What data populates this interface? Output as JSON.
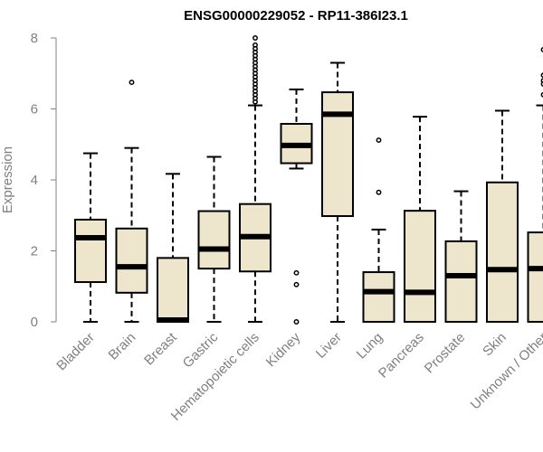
{
  "chart_data": {
    "type": "boxplot",
    "title": "ENSG00000229052 - RP11-386I23.1",
    "xlabel": "",
    "ylabel": "Expression",
    "ylim": [
      0,
      8
    ],
    "yticks": [
      0,
      2,
      4,
      6,
      8
    ],
    "box_fill": "#ede6cc",
    "categories": [
      "Bladder",
      "Brain",
      "Breast",
      "Gastric",
      "Hematopoietic cells",
      "Kidney",
      "Liver",
      "Lung",
      "Pancreas",
      "Prostate",
      "Skin",
      "Unknown / Other"
    ],
    "boxes": [
      {
        "name": "Bladder",
        "whisker_low": 0,
        "q1": 1.12,
        "median": 2.37,
        "q3": 2.88,
        "whisker_high": 4.75,
        "outliers": []
      },
      {
        "name": "Brain",
        "whisker_low": 0,
        "q1": 0.82,
        "median": 1.55,
        "q3": 2.63,
        "whisker_high": 4.9,
        "outliers": [
          6.75
        ]
      },
      {
        "name": "Breast",
        "whisker_low": 0,
        "q1": 0,
        "median": 0.05,
        "q3": 1.8,
        "whisker_high": 4.17,
        "outliers": []
      },
      {
        "name": "Gastric",
        "whisker_low": 0,
        "q1": 1.5,
        "median": 2.05,
        "q3": 3.12,
        "whisker_high": 4.65,
        "outliers": []
      },
      {
        "name": "Hematopoietic cells",
        "whisker_low": 0,
        "q1": 1.42,
        "median": 2.4,
        "q3": 3.32,
        "whisker_high": 6.1,
        "outliers": [
          6.2,
          6.3,
          6.4,
          6.5,
          6.6,
          6.7,
          6.8,
          6.9,
          7.0,
          7.1,
          7.2,
          7.3,
          7.4,
          7.5,
          7.6,
          7.7,
          7.8,
          8.0
        ]
      },
      {
        "name": "Kidney",
        "whisker_low": 4.32,
        "q1": 4.47,
        "median": 4.97,
        "q3": 5.58,
        "whisker_high": 6.55,
        "outliers": [
          0,
          1.05,
          1.38
        ]
      },
      {
        "name": "Liver",
        "whisker_low": 0,
        "q1": 2.98,
        "median": 5.85,
        "q3": 6.47,
        "whisker_high": 7.3,
        "outliers": []
      },
      {
        "name": "Lung",
        "whisker_low": 0,
        "q1": 0,
        "median": 0.85,
        "q3": 1.4,
        "whisker_high": 2.6,
        "outliers": [
          3.65,
          5.12
        ]
      },
      {
        "name": "Pancreas",
        "whisker_low": 0,
        "q1": 0,
        "median": 0.83,
        "q3": 3.13,
        "whisker_high": 5.78,
        "outliers": []
      },
      {
        "name": "Prostate",
        "whisker_low": 0,
        "q1": 0,
        "median": 1.3,
        "q3": 2.27,
        "whisker_high": 3.68,
        "outliers": []
      },
      {
        "name": "Skin",
        "whisker_low": 0,
        "q1": 0,
        "median": 1.47,
        "q3": 3.93,
        "whisker_high": 5.95,
        "outliers": []
      },
      {
        "name": "Unknown / Other",
        "whisker_low": 0,
        "q1": 0,
        "median": 1.5,
        "q3": 2.52,
        "whisker_high": 6.1,
        "outliers": [
          6.4,
          6.7,
          6.8,
          6.95,
          7.67
        ]
      }
    ]
  }
}
